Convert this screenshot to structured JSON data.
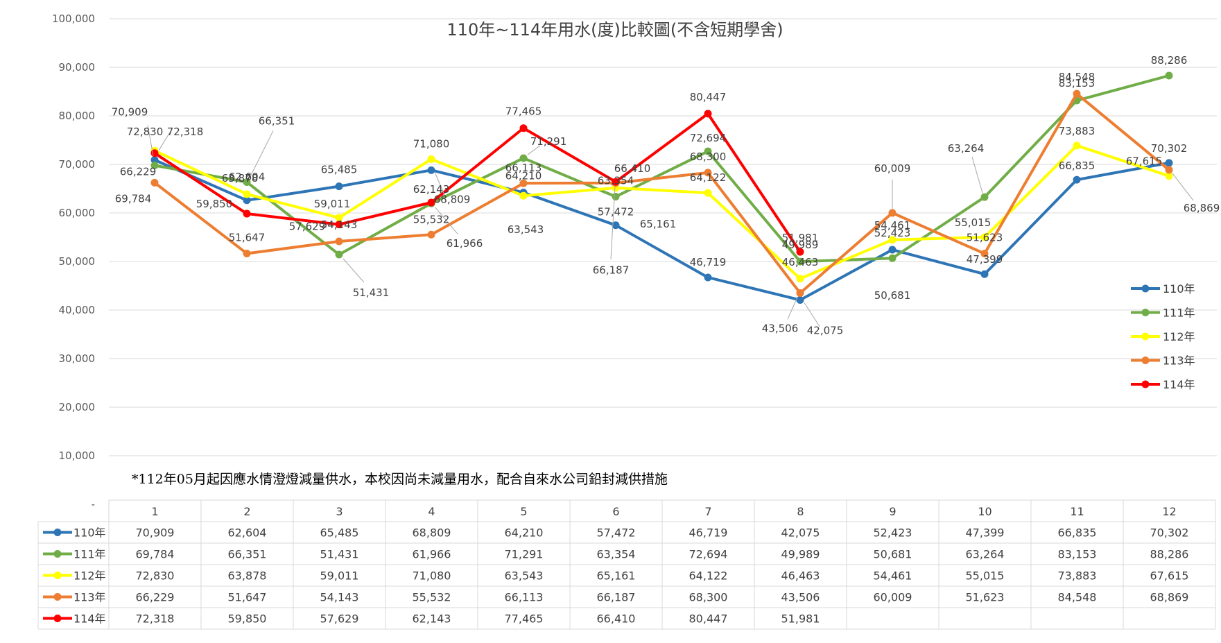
{
  "chart_data": {
    "type": "line",
    "title": "110年~114年用水(度)比較圖(不含短期學舍)",
    "note": "*112年05月起因應水情澄燈減量供水，本校因尚未減量用水，配合自來水公司鉛封減供措施",
    "categories": [
      "1",
      "2",
      "3",
      "4",
      "5",
      "6",
      "7",
      "8",
      "9",
      "10",
      "11",
      "12"
    ],
    "ylim": [
      0,
      100000
    ],
    "yticks": [
      "-",
      "10,000",
      "20,000",
      "30,000",
      "40,000",
      "50,000",
      "60,000",
      "70,000",
      "80,000",
      "90,000",
      "100,000"
    ],
    "grid": true,
    "legend_position": "right",
    "series": [
      {
        "name": "110年",
        "color": "#2e75b6",
        "values": [
          70909,
          62604,
          65485,
          68809,
          64210,
          57472,
          46719,
          42075,
          52423,
          47399,
          66835,
          70302
        ],
        "labels": [
          "70,909",
          "62,604",
          "65,485",
          "68,809",
          "64,210",
          "57,472",
          "46,719",
          "42,075",
          "52,423",
          "47,399",
          "66,835",
          "70,302"
        ]
      },
      {
        "name": "111年",
        "color": "#70ad47",
        "values": [
          69784,
          66351,
          51431,
          61966,
          71291,
          63354,
          72694,
          49989,
          50681,
          63264,
          83153,
          88286
        ],
        "labels": [
          "69,784",
          "66,351",
          "51,431",
          "61,966",
          "71,291",
          "63,354",
          "72,694",
          "49,989",
          "50,681",
          "63,264",
          "83,153",
          "88,286"
        ]
      },
      {
        "name": "112年",
        "color": "#ffff00",
        "values": [
          72830,
          63878,
          59011,
          71080,
          63543,
          65161,
          64122,
          46463,
          54461,
          55015,
          73883,
          67615
        ],
        "labels": [
          "72,830",
          "63,878",
          "59,011",
          "71,080",
          "63,543",
          "65,161",
          "64,122",
          "46,463",
          "54,461",
          "55,015",
          "73,883",
          "67,615"
        ]
      },
      {
        "name": "113年",
        "color": "#ed7d31",
        "values": [
          66229,
          51647,
          54143,
          55532,
          66113,
          66187,
          68300,
          43506,
          60009,
          51623,
          84548,
          68869
        ],
        "labels": [
          "66,229",
          "51,647",
          "54,143",
          "55,532",
          "66,113",
          "66,187",
          "68,300",
          "43,506",
          "60,009",
          "51,623",
          "84,548",
          "68,869"
        ]
      },
      {
        "name": "114年",
        "color": "#ff0000",
        "values": [
          72318,
          59850,
          57629,
          62143,
          77465,
          66410,
          80447,
          51981,
          null,
          null,
          null,
          null
        ],
        "labels": [
          "72,318",
          "59,850",
          "57,629",
          "62,143",
          "77,465",
          "66,410",
          "80,447",
          "51,981",
          "",
          "",
          "",
          ""
        ]
      }
    ]
  }
}
